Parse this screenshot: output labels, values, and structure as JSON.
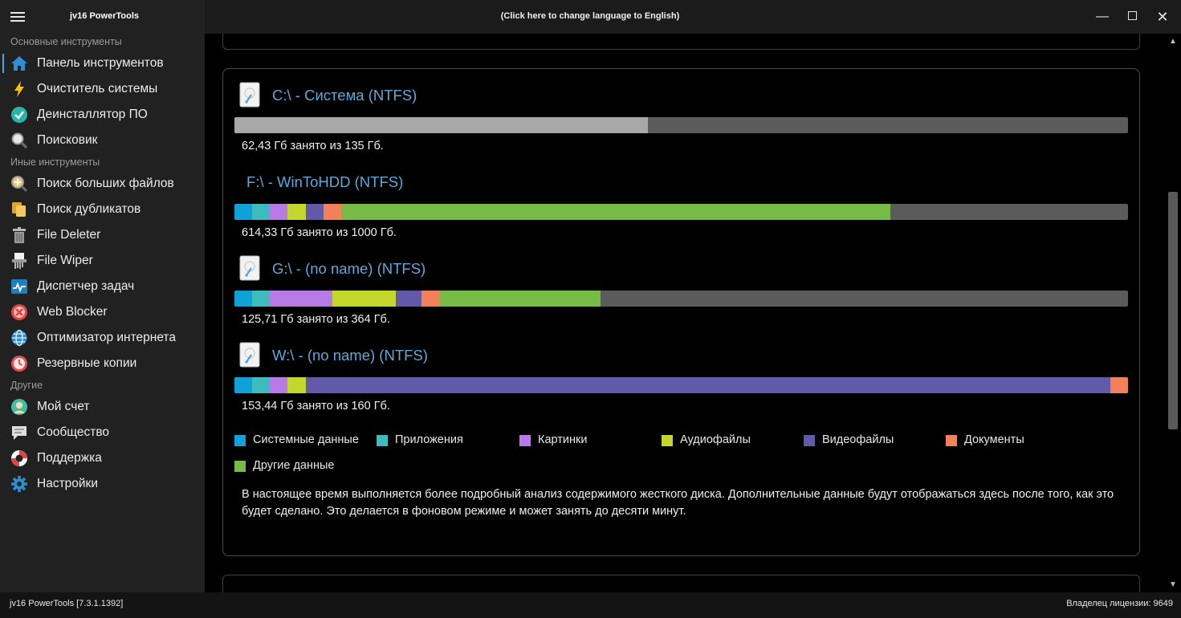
{
  "titlebar": {
    "app_title": "jv16 PowerTools",
    "language_link": "(Click here to change language to English)"
  },
  "sidebar": {
    "sections": [
      {
        "title": "Основные инструменты",
        "items": [
          {
            "label": "Панель инструментов",
            "icon": "home-icon"
          },
          {
            "label": "Очиститель системы",
            "icon": "lightning-icon"
          },
          {
            "label": "Деинсталлятор ПО",
            "icon": "checkmark-icon"
          },
          {
            "label": "Поисковик",
            "icon": "magnifier-icon"
          }
        ]
      },
      {
        "title": "Иные инструменты",
        "items": [
          {
            "label": "Поиск больших файлов",
            "icon": "big-file-search-icon"
          },
          {
            "label": "Поиск дубликатов",
            "icon": "duplicates-icon"
          },
          {
            "label": "File Deleter",
            "icon": "trash-icon"
          },
          {
            "label": "File Wiper",
            "icon": "shredder-icon"
          },
          {
            "label": "Диспетчер задач",
            "icon": "task-manager-icon"
          },
          {
            "label": "Web Blocker",
            "icon": "blocker-icon"
          },
          {
            "label": "Оптимизатор интернета",
            "icon": "globe-icon"
          },
          {
            "label": "Резервные копии",
            "icon": "backup-clock-icon"
          }
        ]
      },
      {
        "title": "Другие",
        "items": [
          {
            "label": "Мой счет",
            "icon": "user-avatar-icon"
          },
          {
            "label": "Сообщество",
            "icon": "chat-icon"
          },
          {
            "label": "Поддержка",
            "icon": "lifebuoy-icon"
          },
          {
            "label": "Настройки",
            "icon": "gear-icon"
          }
        ]
      }
    ]
  },
  "colors": {
    "system": "#0fa1d8",
    "apps": "#3cbcbc",
    "pictures": "#b87ae6",
    "audio": "#c2d62c",
    "video": "#625aa8",
    "documents": "#f2805a",
    "other": "#76bb45",
    "free": "#5b5b5b",
    "used_plain": "#a8a8a8",
    "title": "#5fa8d8"
  },
  "drives": [
    {
      "title": "C:\\ - Система (NTFS)",
      "usage": "62,43 Гб занято из 135 Гб.",
      "has_icon": true,
      "segments": [
        {
          "cat": "used_plain",
          "fraction": 0.4624
        }
      ]
    },
    {
      "title": "F:\\ - WinToHDD (NTFS)",
      "usage": "614,33 Гб занято из 1000 Гб.",
      "has_icon": false,
      "segments": [
        {
          "cat": "system",
          "fraction": 0.0198
        },
        {
          "cat": "apps",
          "fraction": 0.0198
        },
        {
          "cat": "pictures",
          "fraction": 0.0198
        },
        {
          "cat": "audio",
          "fraction": 0.0207
        },
        {
          "cat": "video",
          "fraction": 0.0198
        },
        {
          "cat": "documents",
          "fraction": 0.0198
        },
        {
          "cat": "other",
          "fraction": 0.6146
        }
      ]
    },
    {
      "title": "G:\\ - (no name) (NTFS)",
      "usage": "125,71 Гб занято из 364 Гб.",
      "has_icon": true,
      "segments": [
        {
          "cat": "system",
          "fraction": 0.0198
        },
        {
          "cat": "apps",
          "fraction": 0.0198
        },
        {
          "cat": "pictures",
          "fraction": 0.0701
        },
        {
          "cat": "audio",
          "fraction": 0.071
        },
        {
          "cat": "video",
          "fraction": 0.0288
        },
        {
          "cat": "documents",
          "fraction": 0.0207
        },
        {
          "cat": "other",
          "fraction": 0.1797
        }
      ]
    },
    {
      "title": "W:\\ - (no name) (NTFS)",
      "usage": "153,44 Гб занято из 160 Гб.",
      "has_icon": true,
      "segments": [
        {
          "cat": "system",
          "fraction": 0.0198
        },
        {
          "cat": "apps",
          "fraction": 0.0198
        },
        {
          "cat": "pictures",
          "fraction": 0.0198
        },
        {
          "cat": "audio",
          "fraction": 0.0207
        },
        {
          "cat": "video",
          "fraction": 0.9002
        },
        {
          "cat": "documents",
          "fraction": 0.0198
        }
      ]
    }
  ],
  "legend": [
    {
      "cat": "system",
      "label": "Системные данные"
    },
    {
      "cat": "apps",
      "label": "Приложения"
    },
    {
      "cat": "pictures",
      "label": "Картинки"
    },
    {
      "cat": "audio",
      "label": "Аудиофайлы"
    },
    {
      "cat": "video",
      "label": "Видеофайлы"
    },
    {
      "cat": "documents",
      "label": "Документы"
    },
    {
      "cat": "other",
      "label": "Другие данные"
    }
  ],
  "note": "В настоящее время выполняется более подробный анализ содержимого жесткого диска. Дополнительные данные будут отображаться здесь после того, как это будет сделано. Это делается в фоновом режиме и может занять до десяти минут.",
  "statusbar": {
    "version": "jv16 PowerTools [7.3.1.1392]",
    "license": "Владелец лицензии: 9649"
  }
}
